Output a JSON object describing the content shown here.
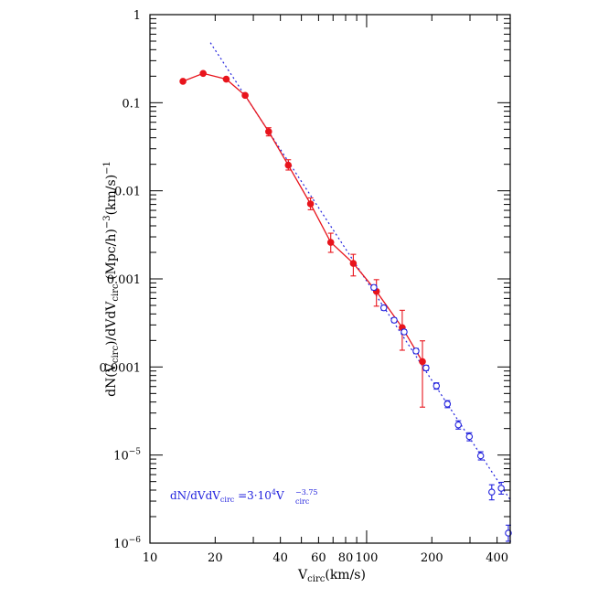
{
  "chart_data": {
    "type": "scatter",
    "xscale": "log",
    "yscale": "log",
    "xlim": [
      10,
      460
    ],
    "ylim": [
      1e-06,
      1
    ],
    "grid": false,
    "legend": "none",
    "x_ticks": [
      {
        "value": 10,
        "label": "10"
      },
      {
        "value": 20,
        "label": "20"
      },
      {
        "value": 40,
        "label": "40"
      },
      {
        "value": 60,
        "label": "60"
      },
      {
        "value": 80,
        "label": "80"
      },
      {
        "value": 100,
        "label": "100"
      },
      {
        "value": 200,
        "label": "200"
      },
      {
        "value": 400,
        "label": "400"
      }
    ],
    "y_ticks": [
      {
        "value": 1,
        "base": "1",
        "exp": ""
      },
      {
        "value": 0.1,
        "base": "0.1",
        "exp": ""
      },
      {
        "value": 0.01,
        "base": "0.01",
        "exp": ""
      },
      {
        "value": 0.001,
        "base": "0.001",
        "exp": ""
      },
      {
        "value": 0.0001,
        "base": "0.0001",
        "exp": ""
      },
      {
        "value": 1e-05,
        "base": "10",
        "exp": "−5"
      },
      {
        "value": 1e-06,
        "base": "10",
        "exp": "−6"
      }
    ],
    "xlabel": {
      "main": "V",
      "sub": "circ",
      "rest": "(km/s)"
    },
    "ylabel": {
      "p1": "dN(V",
      "s1": "circ",
      "p2": ")/dVdV",
      "s2": "circ",
      "p3": "  (Mpc/h)",
      "e1": "−3",
      "p4": "(km/s)",
      "e2": "−1"
    },
    "annotation": {
      "p1": "dN/dVdV",
      "s1": "circ",
      "p2": " =3·10",
      "e1": "4",
      "p3": "V",
      "e2": "−3.75",
      "s2": "circ"
    },
    "colors": {
      "red": "#e8141c",
      "blue": "#2222dd",
      "axis": "#000000"
    },
    "fit": {
      "amplitude": 30000,
      "exponent": -3.75,
      "x_range": [
        19,
        460
      ]
    },
    "series": [
      {
        "marker": "filled-circle",
        "connected": true,
        "color": "#e8141c",
        "points": [
          {
            "x": 14.2,
            "y": 0.175
          },
          {
            "x": 17.6,
            "y": 0.215
          },
          {
            "x": 22.5,
            "y": 0.185
          },
          {
            "x": 27.5,
            "y": 0.121
          },
          {
            "x": 35.3,
            "y": 0.047,
            "ylo": 0.042,
            "yhi": 0.052
          },
          {
            "x": 43.5,
            "y": 0.0195,
            "ylo": 0.0172,
            "yhi": 0.0225
          },
          {
            "x": 55.1,
            "y": 0.0071,
            "ylo": 0.0061,
            "yhi": 0.0083
          },
          {
            "x": 68.3,
            "y": 0.0026,
            "ylo": 0.002,
            "yhi": 0.0033
          },
          {
            "x": 86.8,
            "y": 0.0015,
            "ylo": 0.00108,
            "yhi": 0.0019
          },
          {
            "x": 111,
            "y": 0.00072,
            "ylo": 0.00049,
            "yhi": 0.00098
          },
          {
            "x": 146,
            "y": 0.00028,
            "ylo": 0.000155,
            "yhi": 0.00044
          },
          {
            "x": 181,
            "y": 0.000115,
            "ylo": 3.5e-05,
            "yhi": 0.000198
          }
        ]
      },
      {
        "marker": "open-circle",
        "connected": false,
        "color": "#2222dd",
        "points": [
          {
            "x": 108,
            "y": 0.0008,
            "ylo": 0.00075,
            "yhi": 0.00085
          },
          {
            "x": 120,
            "y": 0.00047,
            "ylo": 0.00044,
            "yhi": 0.0005
          },
          {
            "x": 134,
            "y": 0.00034,
            "ylo": 0.00032,
            "yhi": 0.00036
          },
          {
            "x": 149,
            "y": 0.00025,
            "ylo": 0.000235,
            "yhi": 0.000265
          },
          {
            "x": 169,
            "y": 0.000152,
            "ylo": 0.000142,
            "yhi": 0.000162
          },
          {
            "x": 188,
            "y": 9.75e-05,
            "ylo": 9.1e-05,
            "yhi": 0.000104
          },
          {
            "x": 210,
            "y": 6.1e-05,
            "ylo": 5.6e-05,
            "yhi": 6.6e-05
          },
          {
            "x": 236,
            "y": 3.8e-05,
            "ylo": 3.45e-05,
            "yhi": 4.15e-05
          },
          {
            "x": 265,
            "y": 2.2e-05,
            "ylo": 1.97e-05,
            "yhi": 2.45e-05
          },
          {
            "x": 298,
            "y": 1.62e-05,
            "ylo": 1.45e-05,
            "yhi": 1.79e-05
          },
          {
            "x": 336,
            "y": 9.8e-06,
            "ylo": 8.8e-06,
            "yhi": 1.09e-05
          },
          {
            "x": 378,
            "y": 3.8e-06,
            "ylo": 3.1e-06,
            "yhi": 4.6e-06
          },
          {
            "x": 418,
            "y": 4.2e-06,
            "ylo": 3.6e-06,
            "yhi": 4.9e-06
          },
          {
            "x": 451,
            "y": 1.3e-06,
            "ylo": 1.05e-06,
            "yhi": 1.6e-06
          }
        ]
      }
    ]
  }
}
